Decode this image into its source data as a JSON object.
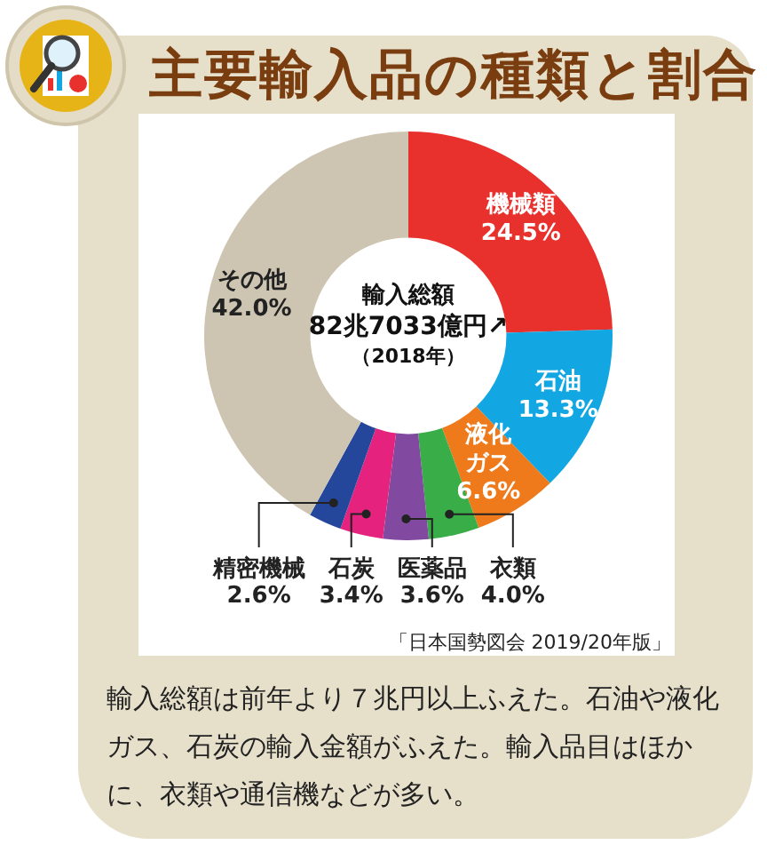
{
  "chart_data": {
    "type": "donut",
    "title": "主要輸入品の種類と割合",
    "categories": [
      "機械類",
      "石油",
      "液化ガス",
      "衣類",
      "医薬品",
      "石炭",
      "精密機械",
      "その他"
    ],
    "values": [
      24.5,
      13.3,
      6.6,
      4.0,
      3.6,
      3.4,
      2.6,
      42.0
    ],
    "colors": [
      "#e8302c",
      "#12a7e3",
      "#ee7a1c",
      "#39ad48",
      "#8249a0",
      "#e5237f",
      "#24479c",
      "#cdc5b2"
    ],
    "value_labels": [
      "24.5%",
      "13.3%",
      "6.6%",
      "4.0%",
      "3.6%",
      "3.4%",
      "2.6%",
      "42.0%"
    ],
    "legend": false,
    "annotations": [
      "輸入総額",
      "82兆7033億円↗",
      "（2018年）",
      "「日本国勢図会 2019/20年版」",
      "輸入総額は前年より７兆円以上ふえた。石油や液化ガス、石炭の輸入金額がふえた。輸入品目はほかに、衣類や通信機などが多い。"
    ]
  }
}
